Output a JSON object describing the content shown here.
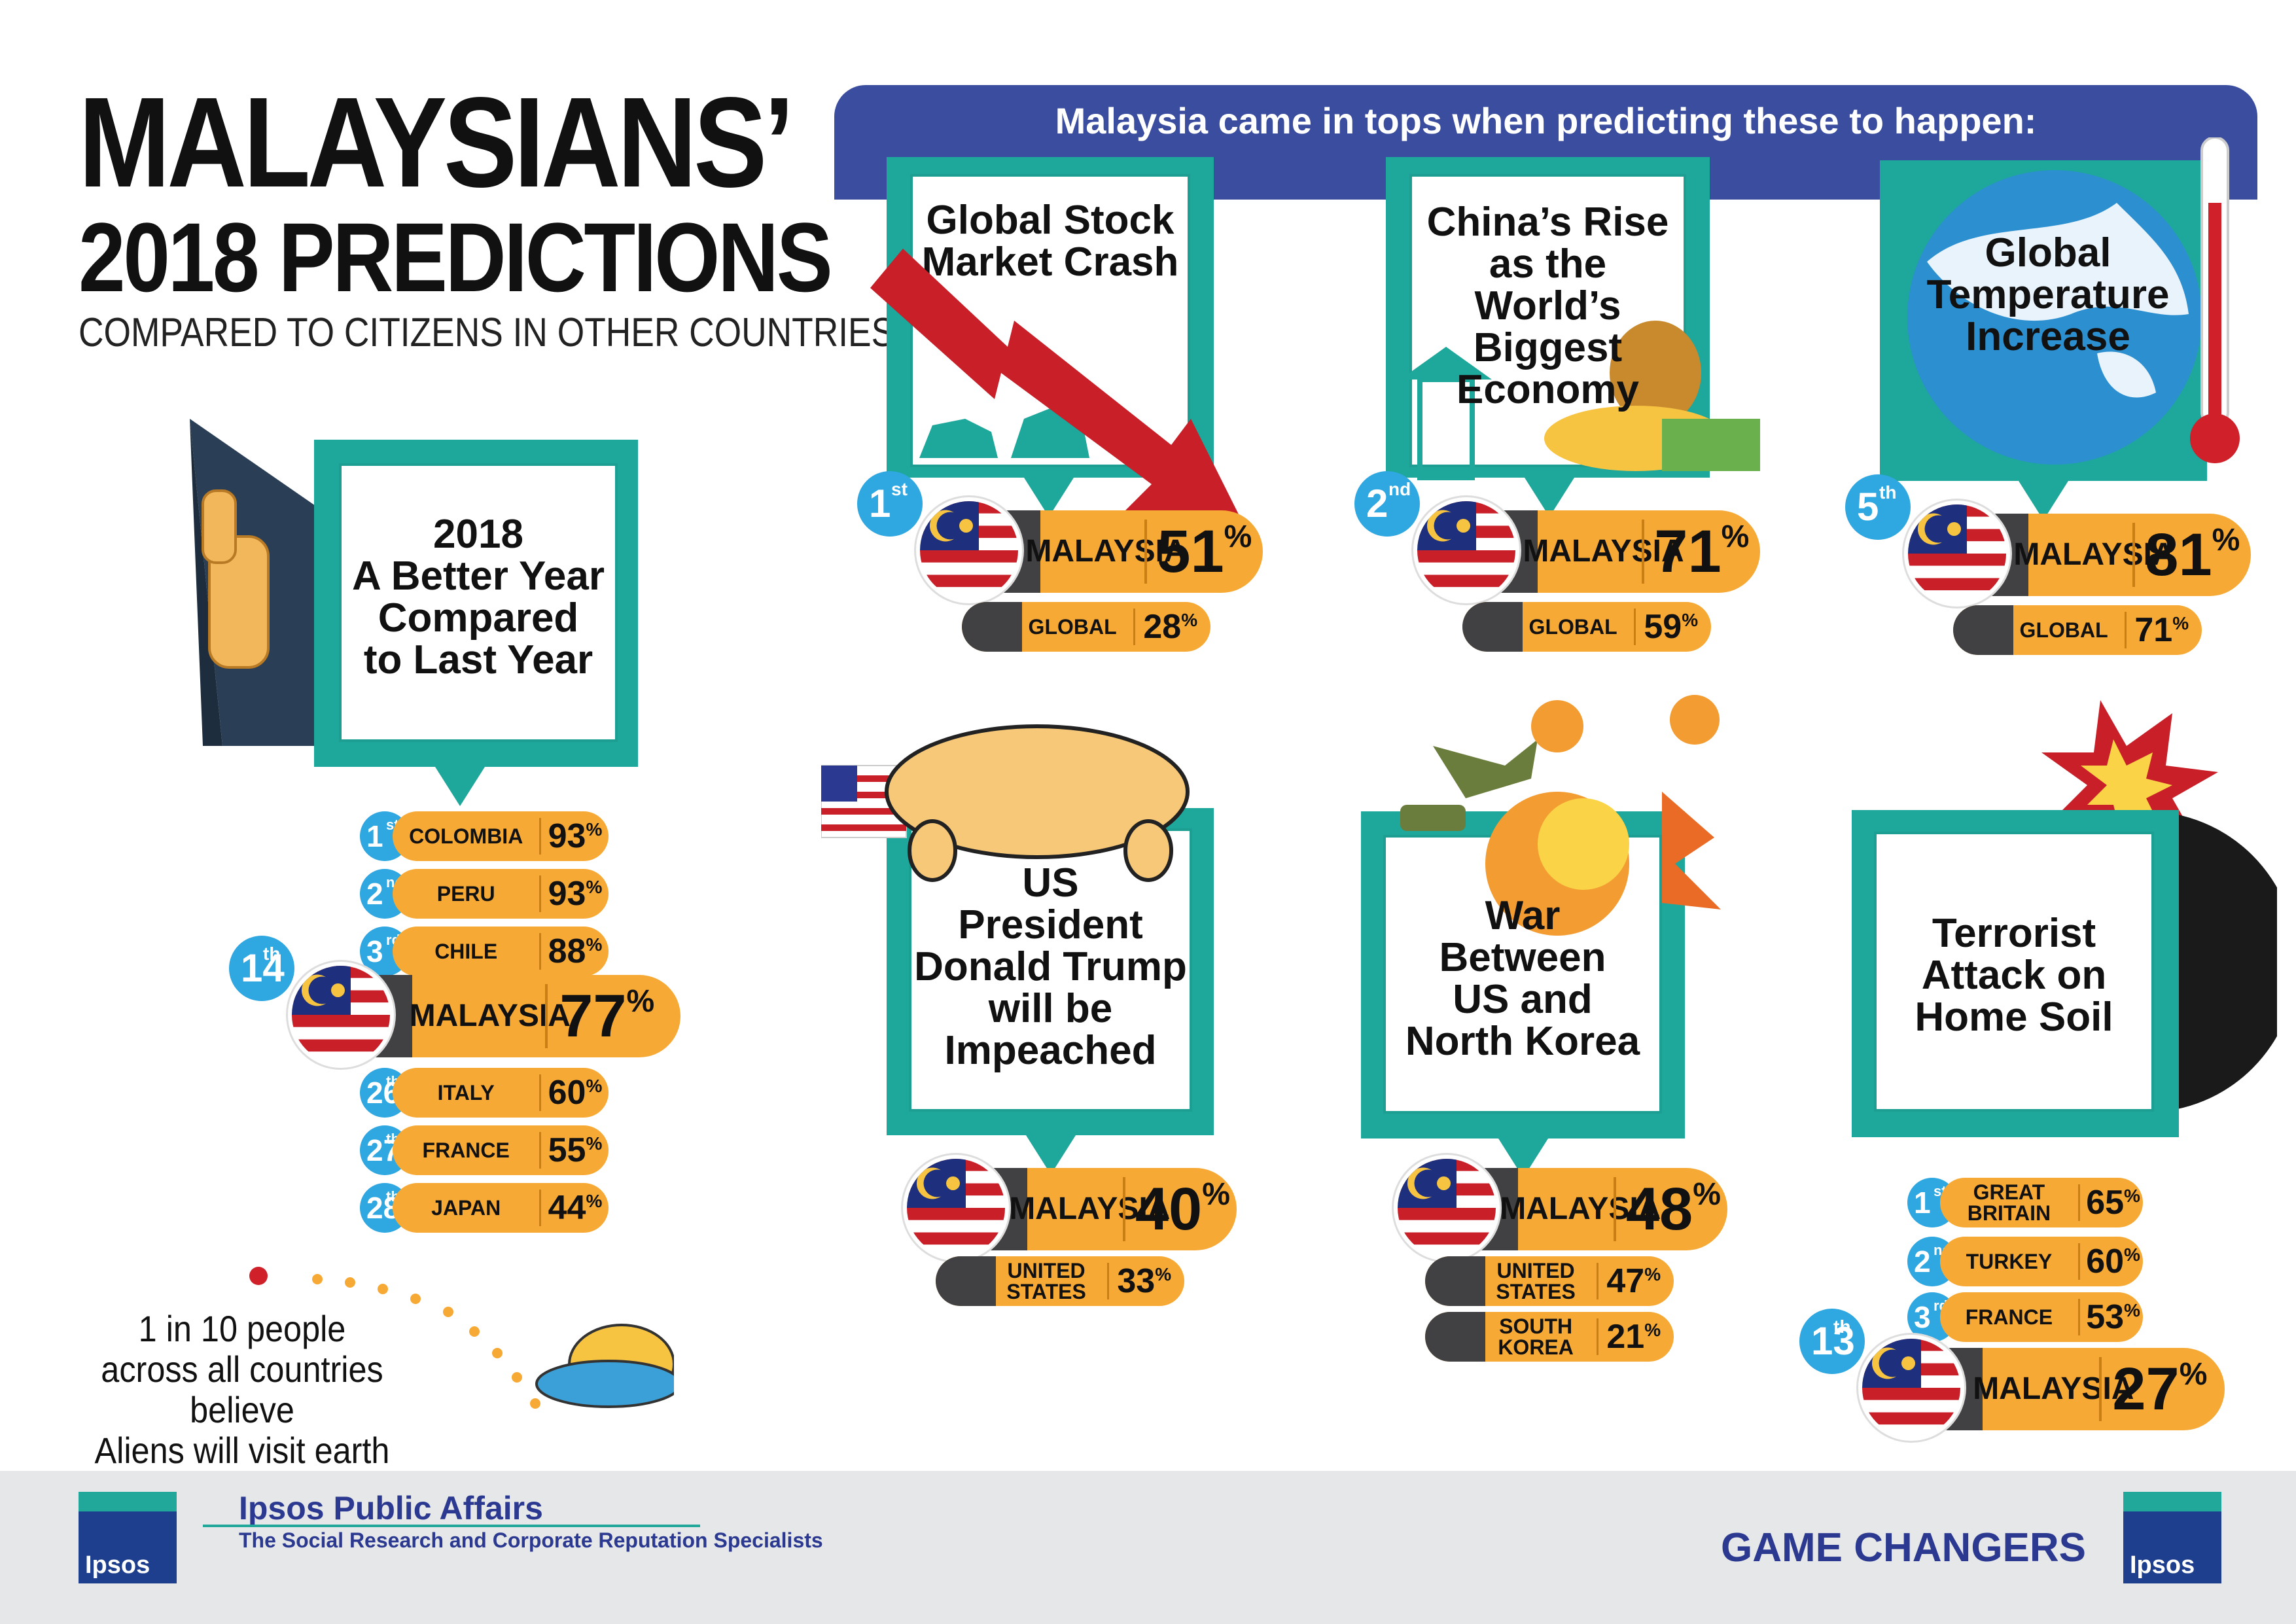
{
  "header": {
    "title_line1": "MALAYSIANS’",
    "title_line2": "2018 PREDICTIONS",
    "subtitle": "COMPARED TO CITIZENS IN OTHER COUNTRIES"
  },
  "banner": {
    "text": "Malaysia came in tops when predicting these to happen:"
  },
  "better_year": {
    "title": [
      "2018",
      "A Better Year",
      "Compared",
      "to Last Year"
    ],
    "ranks": [
      {
        "rank": "1",
        "suffix": "st",
        "country": "COLOMBIA",
        "value": "93"
      },
      {
        "rank": "2",
        "suffix": "nd",
        "country": "PERU",
        "value": "93"
      },
      {
        "rank": "3",
        "suffix": "rd",
        "country": "CHILE",
        "value": "88"
      },
      {
        "rank": "14",
        "suffix": "th",
        "country": "MALAYSIA",
        "value": "77"
      },
      {
        "rank": "26",
        "suffix": "th",
        "country": "ITALY",
        "value": "60"
      },
      {
        "rank": "27",
        "suffix": "th",
        "country": "FRANCE",
        "value": "55"
      },
      {
        "rank": "28",
        "suffix": "th",
        "country": "JAPAN",
        "value": "44"
      }
    ]
  },
  "cards": [
    {
      "title": [
        "Global Stock",
        "Market Crash"
      ],
      "rank": "1",
      "suffix": "st",
      "country": "MALAYSIA",
      "value": "51",
      "compare": [
        {
          "label": "GLOBAL",
          "value": "28"
        }
      ]
    },
    {
      "title": [
        "China’s Rise",
        "as the World’s",
        "Biggest",
        "Economy"
      ],
      "rank": "2",
      "suffix": "nd",
      "country": "MALAYSIA",
      "value": "71",
      "compare": [
        {
          "label": "GLOBAL",
          "value": "59"
        }
      ]
    },
    {
      "title": [
        "Global",
        "Temperature",
        "Increase"
      ],
      "rank": "5",
      "suffix": "th",
      "country": "MALAYSIA",
      "value": "81",
      "compare": [
        {
          "label": "GLOBAL",
          "value": "71"
        }
      ]
    },
    {
      "title": [
        "US",
        "President",
        "Donald Trump",
        "will be",
        "Impeached"
      ],
      "country": "MALAYSIA",
      "value": "40",
      "compare": [
        {
          "label": [
            "UNITED",
            "STATES"
          ],
          "value": "33"
        }
      ]
    },
    {
      "title": [
        "War",
        "Between",
        "US and",
        "North Korea"
      ],
      "country": "MALAYSIA",
      "value": "48",
      "compare": [
        {
          "label": [
            "UNITED",
            "STATES"
          ],
          "value": "47"
        },
        {
          "label": [
            "SOUTH",
            "KOREA"
          ],
          "value": "21"
        }
      ]
    },
    {
      "title": [
        "Terrorist",
        "Attack on",
        "Home Soil"
      ]
    }
  ],
  "terrorist_ranks": [
    {
      "rank": "1",
      "suffix": "st",
      "country": [
        "GREAT",
        "BRITAIN"
      ],
      "value": "65"
    },
    {
      "rank": "2",
      "suffix": "nd",
      "country": "TURKEY",
      "value": "60"
    },
    {
      "rank": "3",
      "suffix": "rd",
      "country": "FRANCE",
      "value": "53"
    },
    {
      "rank": "13",
      "suffix": "th",
      "country": "MALAYSIA",
      "value": "27"
    }
  ],
  "aliens": {
    "lines": [
      "1 in 10 people",
      "across all countries believe",
      "Aliens will visit earth"
    ]
  },
  "footer": {
    "logo_text": "Ipsos",
    "org": "Ipsos Public Affairs",
    "tagline": "The Social Research and Corporate Reputation Specialists",
    "right_text": "GAME CHANGERS"
  },
  "colors": {
    "teal": "#1ea79b",
    "orange": "#f7a935",
    "navy": "#3b4d9e",
    "dark_gray": "#414042",
    "rank_blue": "#2fa7e0"
  },
  "percent_sign": "%"
}
